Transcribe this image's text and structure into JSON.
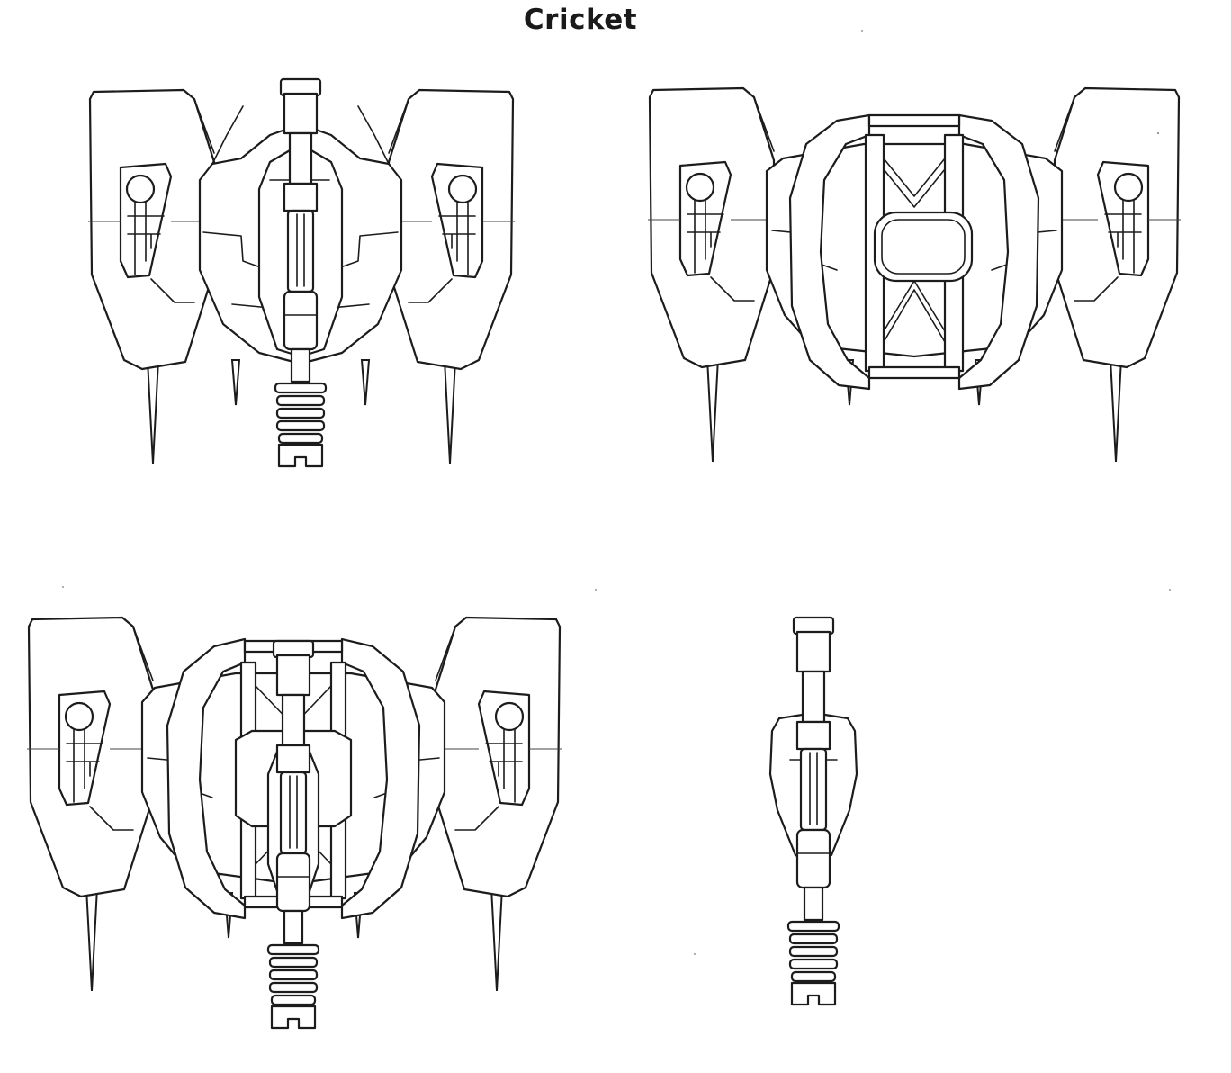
{
  "sheet": {
    "title": "Cricket"
  }
}
